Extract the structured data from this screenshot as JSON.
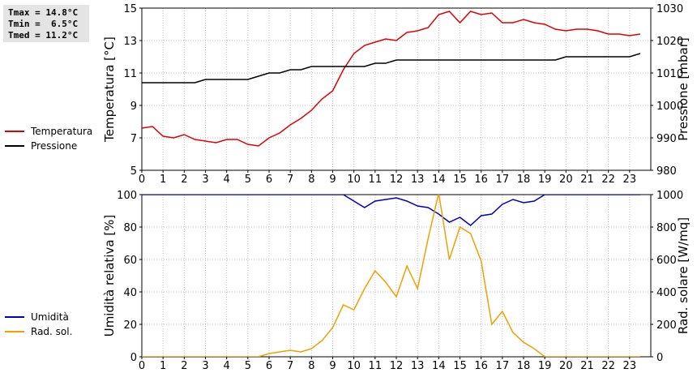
{
  "stats": {
    "tmax": "Tmax = 14.8°C",
    "tmin": "Tmin =  6.5°C",
    "tmed": "Tmed = 11.2°C"
  },
  "chart_data": [
    {
      "type": "line",
      "ylabel": "Temperatura [°C]",
      "y2label": "Pressione [mbar]",
      "xlim": [
        0,
        24
      ],
      "x_ticks": [
        "0",
        "1",
        "2",
        "3",
        "4",
        "5",
        "6",
        "7",
        "8",
        "9",
        "10",
        "11",
        "12",
        "13",
        "14",
        "15",
        "16",
        "17",
        "18",
        "19",
        "20",
        "21",
        "22",
        "23"
      ],
      "ylim": [
        5,
        15
      ],
      "y_ticks": [
        "5",
        "7",
        "9",
        "11",
        "13",
        "15"
      ],
      "y2lim": [
        980,
        1030
      ],
      "y2_ticks": [
        "980",
        "990",
        "1000",
        "1010",
        "1020",
        "1030"
      ],
      "grid": true,
      "legend_position": "left",
      "series": [
        {
          "name": "Temperatura",
          "axis": "left",
          "color": "#e00000",
          "x": [
            0,
            0.5,
            1,
            1.5,
            2,
            2.5,
            3,
            3.5,
            4,
            4.5,
            5,
            5.5,
            6,
            6.5,
            7,
            7.5,
            8,
            8.5,
            9,
            9.5,
            10,
            10.5,
            11,
            11.5,
            12,
            12.5,
            13,
            13.5,
            14,
            14.5,
            15,
            15.5,
            16,
            16.5,
            17,
            17.5,
            18,
            18.5,
            19,
            19.5,
            20,
            20.5,
            21,
            21.5,
            22,
            22.5,
            23,
            23.5
          ],
          "values": [
            7.6,
            7.7,
            7.1,
            7.0,
            7.2,
            6.9,
            6.8,
            6.7,
            6.9,
            6.9,
            6.6,
            6.5,
            7.0,
            7.3,
            7.8,
            8.2,
            8.7,
            9.4,
            9.9,
            11.2,
            12.2,
            12.7,
            12.9,
            13.1,
            13.0,
            13.5,
            13.6,
            13.8,
            14.6,
            14.8,
            14.1,
            14.8,
            14.6,
            14.7,
            14.1,
            14.1,
            14.3,
            14.1,
            14.0,
            13.7,
            13.6,
            13.7,
            13.7,
            13.6,
            13.4,
            13.4,
            13.3,
            13.4
          ]
        },
        {
          "name": "Pressione",
          "axis": "right",
          "color": "#000000",
          "x": [
            0,
            0.5,
            1,
            1.5,
            2,
            2.5,
            3,
            3.5,
            4,
            4.5,
            5,
            5.5,
            6,
            6.5,
            7,
            7.5,
            8,
            8.5,
            9,
            9.5,
            10,
            10.5,
            11,
            11.5,
            12,
            12.5,
            13,
            13.5,
            14,
            14.5,
            15,
            15.5,
            16,
            16.5,
            17,
            17.5,
            18,
            18.5,
            19,
            19.5,
            20,
            20.5,
            21,
            21.5,
            22,
            22.5,
            23,
            23.5
          ],
          "values": [
            1007,
            1007,
            1007,
            1007,
            1007,
            1007,
            1008,
            1008,
            1008,
            1008,
            1008,
            1009,
            1010,
            1010,
            1011,
            1011,
            1012,
            1012,
            1012,
            1012,
            1012,
            1012,
            1013,
            1013,
            1014,
            1014,
            1014,
            1014,
            1014,
            1014,
            1014,
            1014,
            1014,
            1014,
            1014,
            1014,
            1014,
            1014,
            1014,
            1014,
            1015,
            1015,
            1015,
            1015,
            1015,
            1015,
            1015,
            1016
          ]
        }
      ]
    },
    {
      "type": "line",
      "ylabel": "Umidità relativa [%]",
      "y2label": "Rad. solare [W/mq]",
      "xlim": [
        0,
        24
      ],
      "x_ticks": [
        "0",
        "1",
        "2",
        "3",
        "4",
        "5",
        "6",
        "7",
        "8",
        "9",
        "10",
        "11",
        "12",
        "13",
        "14",
        "15",
        "16",
        "17",
        "18",
        "19",
        "20",
        "21",
        "22",
        "23"
      ],
      "ylim": [
        0,
        100
      ],
      "y_ticks": [
        "0",
        "20",
        "40",
        "60",
        "80",
        "100"
      ],
      "y2lim": [
        0,
        1000
      ],
      "y2_ticks": [
        "0",
        "200",
        "400",
        "600",
        "800",
        "1000"
      ],
      "grid": true,
      "legend_position": "left",
      "series": [
        {
          "name": "Umidità",
          "axis": "left",
          "color": "#0000c0",
          "x": [
            0,
            0.5,
            1,
            1.5,
            2,
            2.5,
            3,
            3.5,
            4,
            4.5,
            5,
            5.5,
            6,
            6.5,
            7,
            7.5,
            8,
            8.5,
            9,
            9.5,
            10,
            10.5,
            11,
            11.5,
            12,
            12.5,
            13,
            13.5,
            14,
            14.5,
            15,
            15.5,
            16,
            16.5,
            17,
            17.5,
            18,
            18.5,
            19,
            19.5,
            20,
            20.5,
            21,
            21.5,
            22,
            22.5,
            23,
            23.5
          ],
          "values": [
            100,
            100,
            100,
            100,
            100,
            100,
            100,
            100,
            100,
            100,
            100,
            100,
            100,
            100,
            100,
            100,
            100,
            100,
            100,
            100,
            96,
            92,
            96,
            97,
            98,
            96,
            93,
            92,
            88,
            83,
            86,
            81,
            87,
            88,
            94,
            97,
            95,
            96,
            100,
            100,
            100,
            100,
            100,
            100,
            100,
            100,
            100,
            100
          ]
        },
        {
          "name": "Rad. sol.",
          "axis": "right",
          "color": "#f0a000",
          "x": [
            0,
            0.5,
            1,
            1.5,
            2,
            2.5,
            3,
            3.5,
            4,
            4.5,
            5,
            5.5,
            6,
            6.5,
            7,
            7.5,
            8,
            8.5,
            9,
            9.5,
            10,
            10.5,
            11,
            11.5,
            12,
            12.5,
            13,
            13.5,
            14,
            14.5,
            15,
            15.5,
            16,
            16.5,
            17,
            17.5,
            18,
            18.5,
            19,
            19.5,
            20,
            20.5,
            21,
            21.5,
            22,
            22.5,
            23,
            23.5
          ],
          "values": [
            0,
            0,
            0,
            0,
            0,
            0,
            0,
            0,
            0,
            0,
            0,
            0,
            20,
            30,
            40,
            30,
            50,
            100,
            180,
            320,
            290,
            420,
            530,
            460,
            370,
            560,
            420,
            730,
            1010,
            600,
            800,
            760,
            590,
            200,
            280,
            150,
            90,
            50,
            0,
            0,
            0,
            0,
            0,
            0,
            0,
            0,
            0,
            0
          ]
        }
      ]
    }
  ]
}
